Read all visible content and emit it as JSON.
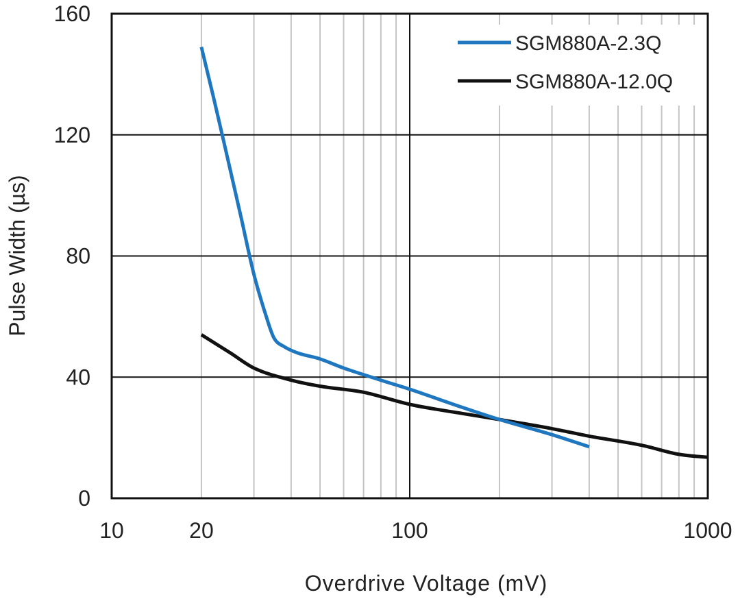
{
  "chart_data": {
    "type": "line",
    "title": "",
    "xlabel": "Overdrive Voltage (mV)",
    "ylabel": "Pulse Width (µs)",
    "xscale": "log",
    "xlim": [
      10,
      1000
    ],
    "ylim": [
      0,
      160
    ],
    "x_major_ticks": [
      {
        "value": 10,
        "label": "10"
      },
      {
        "value": 20,
        "label": "20"
      },
      {
        "value": 100,
        "label": "100"
      },
      {
        "value": 1000,
        "label": "1000"
      }
    ],
    "x_minor_gridlines": [
      20,
      30,
      40,
      50,
      60,
      70,
      80,
      90,
      200,
      300,
      400,
      500,
      600,
      700,
      800,
      900
    ],
    "y_ticks": [
      {
        "value": 0,
        "label": "0"
      },
      {
        "value": 40,
        "label": "40"
      },
      {
        "value": 80,
        "label": "80"
      },
      {
        "value": 120,
        "label": "120"
      },
      {
        "value": 160,
        "label": "160"
      }
    ],
    "grid": true,
    "legend_position": "top-right",
    "series": [
      {
        "name": "SGM880A-2.3Q",
        "color": "#1f77c0",
        "points": [
          {
            "x": 20,
            "y": 149
          },
          {
            "x": 22,
            "y": 132
          },
          {
            "x": 24,
            "y": 116
          },
          {
            "x": 27,
            "y": 94
          },
          {
            "x": 30,
            "y": 74
          },
          {
            "x": 33,
            "y": 60
          },
          {
            "x": 35,
            "y": 53
          },
          {
            "x": 38,
            "y": 50
          },
          {
            "x": 42,
            "y": 48
          },
          {
            "x": 50,
            "y": 46
          },
          {
            "x": 60,
            "y": 43
          },
          {
            "x": 80,
            "y": 39
          },
          {
            "x": 100,
            "y": 36
          },
          {
            "x": 150,
            "y": 30
          },
          {
            "x": 200,
            "y": 26
          },
          {
            "x": 300,
            "y": 21
          },
          {
            "x": 400,
            "y": 17
          }
        ]
      },
      {
        "name": "SGM880A-12.0Q",
        "color": "#111111",
        "points": [
          {
            "x": 20,
            "y": 54
          },
          {
            "x": 25,
            "y": 48
          },
          {
            "x": 30,
            "y": 43
          },
          {
            "x": 40,
            "y": 39
          },
          {
            "x": 50,
            "y": 37
          },
          {
            "x": 70,
            "y": 35
          },
          {
            "x": 100,
            "y": 31
          },
          {
            "x": 150,
            "y": 28
          },
          {
            "x": 200,
            "y": 26
          },
          {
            "x": 300,
            "y": 23
          },
          {
            "x": 400,
            "y": 20.5
          },
          {
            "x": 600,
            "y": 17.5
          },
          {
            "x": 800,
            "y": 14.5
          },
          {
            "x": 1000,
            "y": 13.5
          }
        ]
      }
    ]
  }
}
